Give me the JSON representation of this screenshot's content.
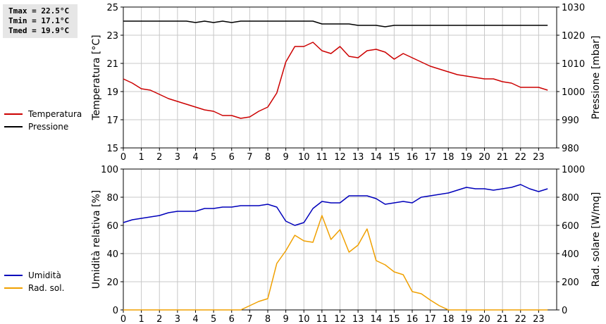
{
  "stats": {
    "tmax": "Tmax = 22.5°C",
    "tmin": "Tmin = 17.1°C",
    "tmed": "Tmed = 19.9°C"
  },
  "colors": {
    "temperatura": "#cc0000",
    "pressione": "#000000",
    "umidita": "#0000bb",
    "radiazione": "#f0a000",
    "grid": "#c8c8c8"
  },
  "chart_data": [
    {
      "type": "line",
      "xlim": [
        0,
        24
      ],
      "x_ticks": [
        "0",
        "1",
        "2",
        "3",
        "4",
        "5",
        "6",
        "7",
        "8",
        "9",
        "10",
        "11",
        "12",
        "13",
        "14",
        "15",
        "16",
        "17",
        "18",
        "19",
        "20",
        "21",
        "22",
        "23"
      ],
      "ylabel": "Temperatura [°C]",
      "ylabel_right": "Pressione [mbar]",
      "ylim": [
        15,
        25
      ],
      "ylim_right": [
        980,
        1030
      ],
      "y_ticks": [
        "15",
        "17",
        "19",
        "21",
        "23",
        "25"
      ],
      "y_ticks_right": [
        "980",
        "990",
        "1000",
        "1010",
        "1020",
        "1030"
      ],
      "grid": true,
      "legend_position": "left",
      "series": [
        {
          "name": "Temperatura",
          "axis": "left",
          "x": [
            0,
            0.5,
            1,
            1.5,
            2,
            2.5,
            3,
            3.5,
            4,
            4.5,
            5,
            5.5,
            6,
            6.5,
            7,
            7.5,
            8,
            8.5,
            9,
            9.5,
            10,
            10.5,
            11,
            11.5,
            12,
            12.5,
            13,
            13.5,
            14,
            14.5,
            15,
            15.5,
            16,
            16.5,
            17,
            17.5,
            18,
            18.5,
            19,
            19.5,
            20,
            20.5,
            21,
            21.5,
            22,
            22.5,
            23,
            23.5
          ],
          "values": [
            19.9,
            19.6,
            19.2,
            19.1,
            18.8,
            18.5,
            18.3,
            18.1,
            17.9,
            17.7,
            17.6,
            17.3,
            17.3,
            17.1,
            17.2,
            17.6,
            17.9,
            18.9,
            21.1,
            22.2,
            22.2,
            22.5,
            21.9,
            21.7,
            22.2,
            21.5,
            21.4,
            21.9,
            22.0,
            21.8,
            21.3,
            21.7,
            21.4,
            21.1,
            20.8,
            20.6,
            20.4,
            20.2,
            20.1,
            20.0,
            19.9,
            19.9,
            19.7,
            19.6,
            19.3,
            19.3,
            19.3,
            19.1
          ]
        },
        {
          "name": "Pressione",
          "axis": "right",
          "x": [
            0,
            0.5,
            1,
            1.5,
            2,
            2.5,
            3,
            3.5,
            4,
            4.5,
            5,
            5.5,
            6,
            6.5,
            7,
            7.5,
            8,
            8.5,
            9,
            9.5,
            10,
            10.5,
            11,
            11.5,
            12,
            12.5,
            13,
            13.5,
            14,
            14.5,
            15,
            15.5,
            16,
            16.5,
            17,
            17.5,
            18,
            18.5,
            19,
            19.5,
            20,
            20.5,
            21,
            21.5,
            22,
            22.5,
            23,
            23.5
          ],
          "values": [
            1025,
            1025,
            1025,
            1025,
            1025,
            1025,
            1025,
            1025,
            1024.5,
            1025,
            1024.5,
            1025,
            1024.5,
            1025,
            1025,
            1025,
            1025,
            1025,
            1025,
            1025,
            1025,
            1025,
            1024,
            1024,
            1024,
            1024,
            1023.5,
            1023.5,
            1023.5,
            1023,
            1023.5,
            1023.5,
            1023.5,
            1023.5,
            1023.5,
            1023.5,
            1023.5,
            1023.5,
            1023.5,
            1023.5,
            1023.5,
            1023.5,
            1023.5,
            1023.5,
            1023.5,
            1023.5,
            1023.5,
            1023.5
          ]
        }
      ]
    },
    {
      "type": "line",
      "xlim": [
        0,
        24
      ],
      "x_ticks": [
        "0",
        "1",
        "2",
        "3",
        "4",
        "5",
        "6",
        "7",
        "8",
        "9",
        "10",
        "11",
        "12",
        "13",
        "14",
        "15",
        "16",
        "17",
        "18",
        "19",
        "20",
        "21",
        "22",
        "23"
      ],
      "ylabel": "Umidità relativa [%]",
      "ylabel_right": "Rad. solare [W/mq]",
      "ylim": [
        0,
        100
      ],
      "ylim_right": [
        0,
        1000
      ],
      "y_ticks": [
        "0",
        "20",
        "40",
        "60",
        "80",
        "100"
      ],
      "y_ticks_right": [
        "0",
        "200",
        "400",
        "600",
        "800",
        "1000"
      ],
      "grid": true,
      "legend_position": "left",
      "series": [
        {
          "name": "Umidità",
          "axis": "left",
          "x": [
            0,
            0.5,
            1,
            1.5,
            2,
            2.5,
            3,
            3.5,
            4,
            4.5,
            5,
            5.5,
            6,
            6.5,
            7,
            7.5,
            8,
            8.5,
            9,
            9.5,
            10,
            10.5,
            11,
            11.5,
            12,
            12.5,
            13,
            13.5,
            14,
            14.5,
            15,
            15.5,
            16,
            16.5,
            17,
            17.5,
            18,
            18.5,
            19,
            19.5,
            20,
            20.5,
            21,
            21.5,
            22,
            22.5,
            23,
            23.5
          ],
          "values": [
            62,
            64,
            65,
            66,
            67,
            69,
            70,
            70,
            70,
            72,
            72,
            73,
            73,
            74,
            74,
            74,
            75,
            73,
            63,
            60,
            62,
            72,
            77,
            76,
            76,
            81,
            81,
            81,
            79,
            75,
            76,
            77,
            76,
            80,
            81,
            82,
            83,
            85,
            87,
            86,
            86,
            85,
            86,
            87,
            89,
            86,
            84,
            86
          ]
        },
        {
          "name": "Rad. sol.",
          "axis": "right",
          "x": [
            0,
            0.5,
            1,
            1.5,
            2,
            2.5,
            3,
            3.5,
            4,
            4.5,
            5,
            5.5,
            6,
            6.5,
            7,
            7.5,
            8,
            8.5,
            9,
            9.5,
            10,
            10.5,
            11,
            11.5,
            12,
            12.5,
            13,
            13.5,
            14,
            14.5,
            15,
            15.5,
            16,
            16.5,
            17,
            17.5,
            18,
            18.5,
            19,
            19.5,
            20,
            20.5,
            21,
            21.5,
            22,
            22.5,
            23,
            23.5
          ],
          "values": [
            0,
            0,
            0,
            0,
            0,
            0,
            0,
            0,
            0,
            0,
            0,
            0,
            0,
            0,
            30,
            60,
            80,
            330,
            420,
            530,
            490,
            480,
            670,
            500,
            570,
            410,
            460,
            575,
            350,
            320,
            270,
            250,
            130,
            115,
            70,
            30,
            0,
            0,
            0,
            0,
            0,
            0,
            0,
            0,
            0,
            0,
            0,
            0
          ]
        }
      ]
    }
  ]
}
